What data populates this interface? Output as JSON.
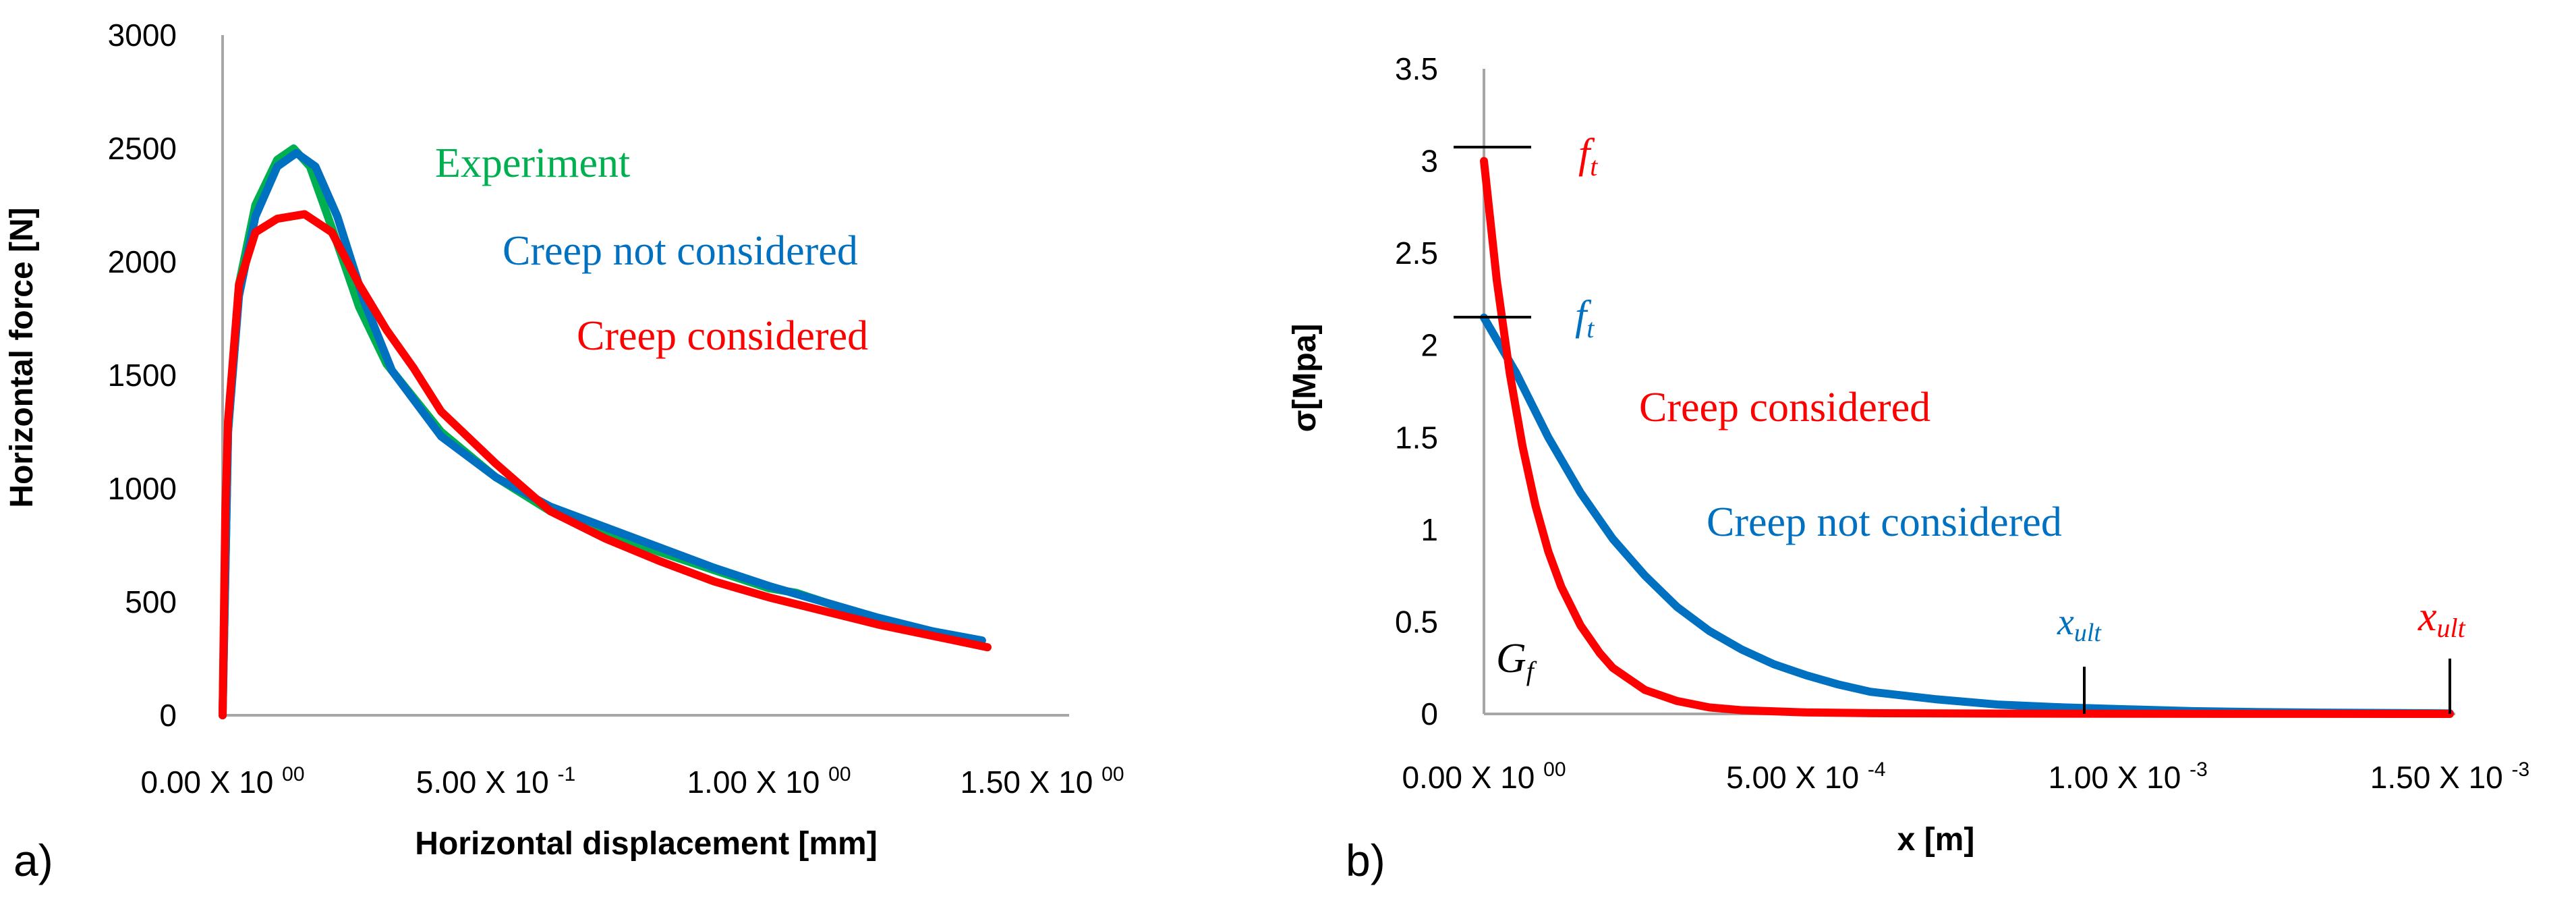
{
  "chart_data": [
    {
      "panel_label": "a)",
      "type": "line",
      "title": "",
      "xlabel": "Horizontal displacement [mm]",
      "ylabel": "Horizontal force [N]",
      "xlim": [
        0,
        1.5
      ],
      "ylim": [
        0,
        3000
      ],
      "x_ticks": [
        {
          "value": 0.0,
          "base": "0.00 X 10",
          "exp": "00"
        },
        {
          "value": 0.5,
          "base": "5.00 X 10",
          "exp": "-1"
        },
        {
          "value": 1.0,
          "base": "1.00 X 10",
          "exp": "00"
        },
        {
          "value": 1.5,
          "base": "1.50 X 10",
          "exp": "00"
        }
      ],
      "y_ticks": [
        0,
        500,
        1000,
        1500,
        2000,
        2500,
        3000
      ],
      "grid": false,
      "series": [
        {
          "name": "Experiment",
          "color": "#00b050",
          "x": [
            0,
            0.01,
            0.03,
            0.06,
            0.1,
            0.13,
            0.16,
            0.2,
            0.25,
            0.3,
            0.4,
            0.5,
            0.6,
            0.7,
            0.8,
            0.9,
            1.0,
            1.05,
            1.1,
            1.2,
            1.3,
            1.38
          ],
          "y": [
            0,
            1250,
            1900,
            2250,
            2450,
            2500,
            2420,
            2150,
            1800,
            1550,
            1250,
            1050,
            900,
            810,
            720,
            640,
            560,
            540,
            500,
            420,
            370,
            330
          ]
        },
        {
          "name": "Creep not considered",
          "color": "#0070c0",
          "x": [
            0,
            0.01,
            0.03,
            0.06,
            0.1,
            0.135,
            0.17,
            0.21,
            0.26,
            0.31,
            0.4,
            0.5,
            0.6,
            0.7,
            0.8,
            0.9,
            1.0,
            1.1,
            1.2,
            1.3,
            1.39
          ],
          "y": [
            0,
            1250,
            1850,
            2200,
            2420,
            2480,
            2420,
            2200,
            1820,
            1520,
            1230,
            1050,
            920,
            830,
            740,
            650,
            570,
            500,
            430,
            370,
            330
          ]
        },
        {
          "name": "Creep considered",
          "color": "#ff0000",
          "x": [
            0,
            0.005,
            0.01,
            0.03,
            0.06,
            0.1,
            0.15,
            0.2,
            0.25,
            0.3,
            0.35,
            0.4,
            0.5,
            0.6,
            0.7,
            0.8,
            0.9,
            1.0,
            1.1,
            1.2,
            1.3,
            1.4
          ],
          "y": [
            0,
            900,
            1300,
            1900,
            2130,
            2190,
            2210,
            2130,
            1900,
            1700,
            1530,
            1340,
            1110,
            900,
            780,
            680,
            590,
            520,
            460,
            400,
            350,
            300
          ]
        }
      ],
      "annotations": [
        {
          "text": "Experiment",
          "color": "#00b050"
        },
        {
          "text": "Creep not considered",
          "color": "#0070c0"
        },
        {
          "text": "Creep considered",
          "color": "#ff0000"
        }
      ]
    },
    {
      "panel_label": "b)",
      "type": "line",
      "title": "",
      "xlabel": "x [m]",
      "ylabel": "σ[Mpa]",
      "xlim": [
        0,
        0.0015
      ],
      "ylim": [
        0,
        3.5
      ],
      "x_ticks": [
        {
          "value": 0.0,
          "base": "0.00 X 10",
          "exp": "00"
        },
        {
          "value": 0.0005,
          "base": "5.00 X 10",
          "exp": "-4"
        },
        {
          "value": 0.001,
          "base": "1.00 X 10",
          "exp": "-3"
        },
        {
          "value": 0.0015,
          "base": "1.50 X 10",
          "exp": "-3"
        }
      ],
      "y_ticks": [
        0,
        0.5,
        1,
        1.5,
        2,
        2.5,
        3,
        3.5
      ],
      "grid": false,
      "series": [
        {
          "name": "Creep not considered",
          "color": "#0070c0",
          "x": [
            0,
            5e-05,
            0.0001,
            0.00015,
            0.0002,
            0.00025,
            0.0003,
            0.00035,
            0.0004,
            0.00045,
            0.0005,
            0.00055,
            0.0006,
            0.0007,
            0.0008,
            0.0009,
            0.001,
            0.0011,
            0.0012,
            0.0013,
            0.0014,
            0.0015
          ],
          "y": [
            2.15,
            1.85,
            1.5,
            1.2,
            0.95,
            0.75,
            0.58,
            0.45,
            0.35,
            0.27,
            0.21,
            0.16,
            0.12,
            0.08,
            0.05,
            0.035,
            0.025,
            0.015,
            0.01,
            0.007,
            0.005,
            0.003
          ]
        },
        {
          "name": "Creep considered",
          "color": "#ff0000",
          "x": [
            0,
            2e-05,
            4e-05,
            6e-05,
            8e-05,
            0.0001,
            0.00012,
            0.00015,
            0.00018,
            0.0002,
            0.00025,
            0.0003,
            0.00035,
            0.0004,
            0.0005,
            0.0006,
            0.0008,
            0.001,
            0.0012,
            0.0015
          ],
          "y": [
            3.0,
            2.35,
            1.85,
            1.45,
            1.13,
            0.88,
            0.69,
            0.48,
            0.33,
            0.25,
            0.13,
            0.07,
            0.035,
            0.02,
            0.008,
            0.004,
            0.002,
            0.001,
            0.0005,
            0.0
          ]
        }
      ],
      "annotations": [
        {
          "text": "Creep considered",
          "color": "#ff0000"
        },
        {
          "text": "Creep not considered",
          "color": "#0070c0"
        }
      ],
      "markers": [
        {
          "symbol": "f",
          "sub": "t",
          "color": "#ff0000",
          "value": 3.0
        },
        {
          "symbol": "f",
          "sub": "t",
          "color": "#0070c0",
          "value": 2.15
        },
        {
          "symbol": "x",
          "sub": "ult",
          "color": "#0070c0",
          "value": 0.001
        },
        {
          "symbol": "x",
          "sub": "ult",
          "color": "#ff0000",
          "value": 0.0015
        },
        {
          "symbol": "G",
          "sub": "f",
          "color": "#000000"
        }
      ]
    }
  ]
}
